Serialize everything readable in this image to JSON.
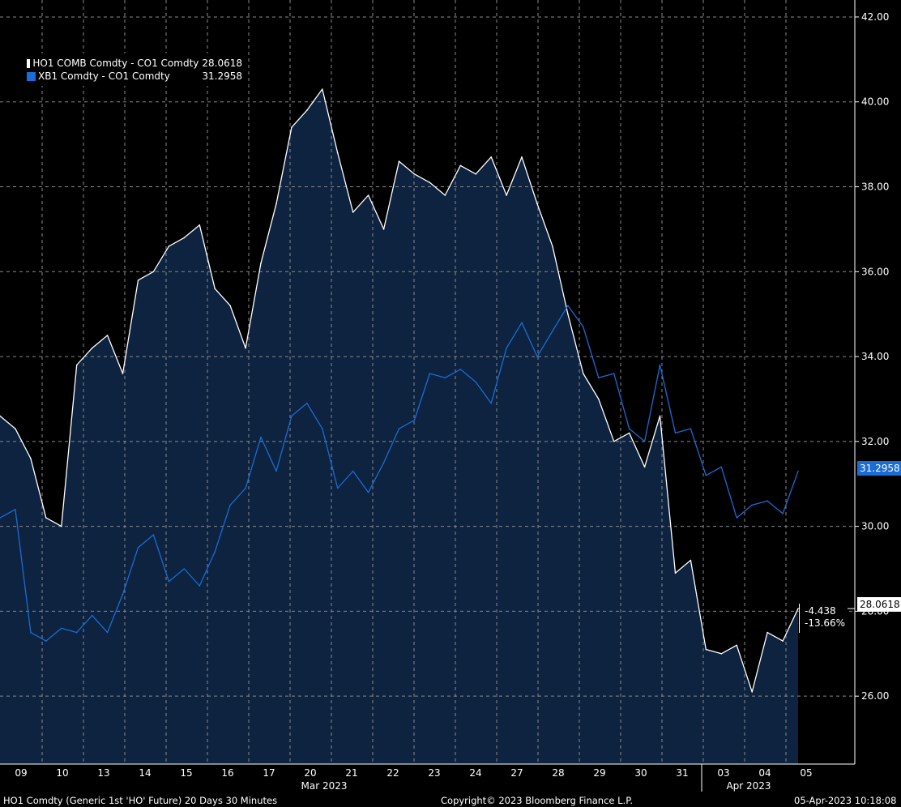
{
  "chart_data": {
    "type": "line",
    "title": "",
    "y_ticks": [
      "42.00",
      "40.00",
      "38.00",
      "36.00",
      "34.00",
      "32.00",
      "30.00",
      "28.00",
      "26.00"
    ],
    "ylim": [
      24.4,
      42.4
    ],
    "x_day_labels": [
      "09",
      "10",
      "13",
      "14",
      "15",
      "16",
      "17",
      "20",
      "21",
      "22",
      "23",
      "24",
      "27",
      "28",
      "29",
      "30",
      "31",
      "03",
      "04",
      "05"
    ],
    "x_month_labels": [
      "Mar 2023",
      "Apr 2023"
    ],
    "series": [
      {
        "name": "HO1 COMB Comdty - CO1 Comdty",
        "last_value": "28.0618",
        "color": "#ffffff",
        "values": [
          32.6,
          32.3,
          31.6,
          30.2,
          30.0,
          33.8,
          34.2,
          34.5,
          33.6,
          35.8,
          36.0,
          36.6,
          36.8,
          37.1,
          35.6,
          35.2,
          34.2,
          36.2,
          37.6,
          39.4,
          39.8,
          40.3,
          38.8,
          37.4,
          37.8,
          37.0,
          38.6,
          38.3,
          38.1,
          37.8,
          38.5,
          38.3,
          38.7,
          37.8,
          38.7,
          37.6,
          36.6,
          35.0,
          33.6,
          33.0,
          32.0,
          32.2,
          31.4,
          32.6,
          28.9,
          29.2,
          27.1,
          27.0,
          27.2,
          26.1,
          27.5,
          27.3,
          28.0618
        ]
      },
      {
        "name": "XB1 Comdty - CO1 Comdty",
        "last_value": "31.2958",
        "color": "#1a6cd6",
        "values": [
          30.2,
          30.4,
          27.5,
          27.3,
          27.6,
          27.5,
          27.9,
          27.5,
          28.4,
          29.5,
          29.8,
          28.7,
          29.0,
          28.6,
          29.4,
          30.5,
          30.9,
          32.1,
          31.3,
          32.6,
          32.9,
          32.3,
          30.9,
          31.3,
          30.8,
          31.5,
          32.3,
          32.5,
          33.6,
          33.5,
          33.7,
          33.4,
          32.9,
          34.2,
          34.8,
          34.0,
          34.6,
          35.2,
          34.7,
          33.5,
          33.6,
          32.3,
          32.0,
          33.8,
          32.2,
          32.3,
          31.2,
          31.4,
          30.2,
          30.5,
          30.6,
          30.3,
          31.2958
        ]
      }
    ],
    "change_annotation": [
      "-4.438",
      "-13.66%"
    ]
  },
  "footer": {
    "left": "HO1 Comdty (Generic 1st 'HO' Future) 20 Days 30 Minutes",
    "center": "Copyright© 2023 Bloomberg Finance L.P.",
    "right": "05-Apr-2023 10:18:08"
  }
}
